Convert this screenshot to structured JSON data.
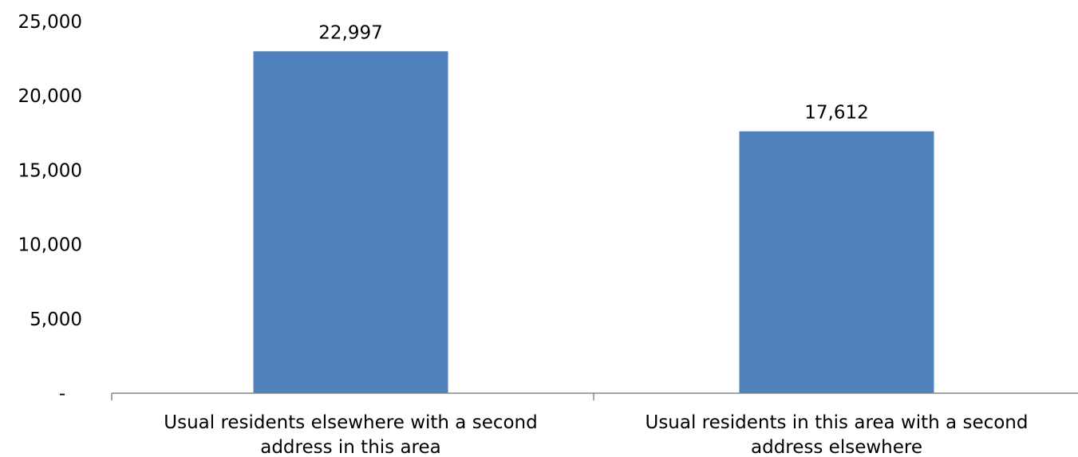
{
  "chart_data": {
    "type": "bar",
    "categories": [
      [
        "Usual residents elsewhere with a second",
        "address in this area"
      ],
      [
        "Usual residents in this area with a second",
        "address elsewhere"
      ]
    ],
    "values": [
      22997,
      17612
    ],
    "value_labels": [
      "22,997",
      "17,612"
    ],
    "title": "",
    "xlabel": "",
    "ylabel": "",
    "ylim": [
      0,
      25000
    ],
    "y_ticks": [
      0,
      5000,
      10000,
      15000,
      20000,
      25000
    ],
    "y_tick_labels": [
      "-",
      "5,000",
      "10,000",
      "15,000",
      "20,000",
      "25,000"
    ],
    "grid": false,
    "legend": "none",
    "bar_color": "#4F81BD",
    "axis_color": "#868686"
  }
}
